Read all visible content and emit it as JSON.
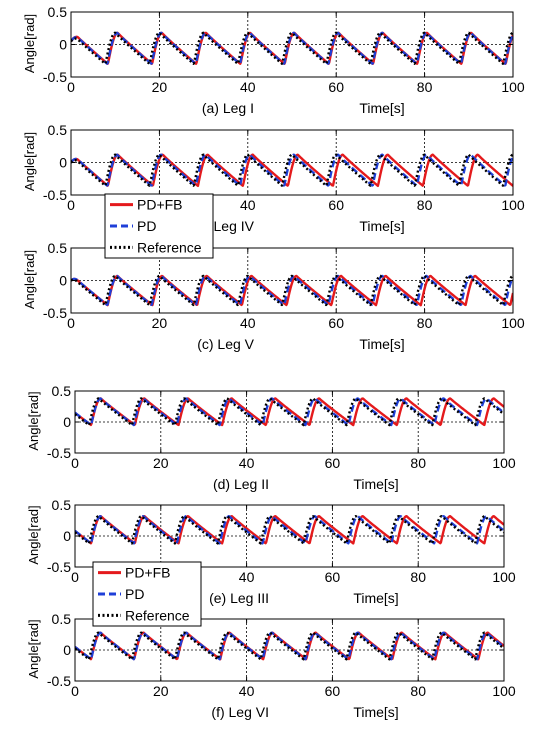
{
  "colors": {
    "pd_fb": "#e41a1c",
    "pd": "#1f3fd8",
    "reference": "#000000",
    "grid": "#000000",
    "axes": "#000000",
    "background": "#ffffff"
  },
  "legend_top": {
    "entries": [
      "PD+FB",
      "PD",
      "Reference"
    ]
  },
  "legend_bottom": {
    "entries": [
      "PD+FB",
      "PD",
      "Reference"
    ]
  },
  "chart_data": [
    {
      "type": "line",
      "caption": "(a)  Leg I",
      "xlabel": "Time[s]",
      "ylabel": "Angle[rad]",
      "xlim": [
        0,
        100
      ],
      "ylim": [
        -0.5,
        0.5
      ],
      "xticks": [
        "0",
        "20",
        "40",
        "60",
        "80",
        "100"
      ],
      "yticks": [
        "0.5",
        "0",
        "-0.5"
      ],
      "grid": "dotted",
      "legend": "none",
      "waveform": {
        "period": 10.0,
        "phase": 0.0,
        "y_low": -0.3,
        "y_high": 0.18,
        "y_start": 0.05,
        "rise_fraction": 0.22
      },
      "series": [
        {
          "name": "PD+FB",
          "delay": 0.55,
          "delay_growth": 0.0
        },
        {
          "name": "PD",
          "delay": 0.45,
          "delay_growth": 0.0
        },
        {
          "name": "Reference",
          "delay": 0.0,
          "delay_growth": 0.0
        }
      ]
    },
    {
      "type": "line",
      "caption": "(b)  Leg IV",
      "xlabel": "Time[s]",
      "ylabel": "Angle[rad]",
      "xlim": [
        0,
        100
      ],
      "ylim": [
        -0.5,
        0.5
      ],
      "xticks": [
        "0",
        "20",
        "40",
        "60",
        "80",
        "100"
      ],
      "yticks": [
        "0.5",
        "0",
        "-0.5"
      ],
      "grid": "dotted",
      "legend": "overlapping lower-left",
      "waveform": {
        "period": 10.0,
        "phase": 0.0,
        "y_low": -0.36,
        "y_high": 0.12,
        "y_start": 0.0,
        "rise_fraction": 0.22
      },
      "series": [
        {
          "name": "PD+FB",
          "delay": 0.4,
          "delay_growth": 0.018
        },
        {
          "name": "PD",
          "delay": 0.45,
          "delay_growth": 0.0
        },
        {
          "name": "Reference",
          "delay": 0.0,
          "delay_growth": 0.0
        }
      ]
    },
    {
      "type": "line",
      "caption": "(c)  Leg V",
      "xlabel": "Time[s]",
      "ylabel": "Angle[rad]",
      "xlim": [
        0,
        100
      ],
      "ylim": [
        -0.5,
        0.5
      ],
      "xticks": [
        "0",
        "20",
        "40",
        "60",
        "80",
        "100"
      ],
      "yticks": [
        "0.5",
        "0",
        "-0.5"
      ],
      "grid": "dotted",
      "legend": "none",
      "waveform": {
        "period": 10.0,
        "phase": 0.0,
        "y_low": -0.38,
        "y_high": 0.07,
        "y_start": 0.0,
        "rise_fraction": 0.22
      },
      "series": [
        {
          "name": "PD+FB",
          "delay": 0.4,
          "delay_growth": 0.012
        },
        {
          "name": "PD",
          "delay": 0.45,
          "delay_growth": 0.0
        },
        {
          "name": "Reference",
          "delay": 0.0,
          "delay_growth": 0.0
        }
      ]
    },
    {
      "type": "line",
      "caption": "(d)  Leg II",
      "xlabel": "Time[s]",
      "ylabel": "Angle[rad]",
      "xlim": [
        0,
        100
      ],
      "ylim": [
        -0.5,
        0.5
      ],
      "xticks": [
        "0",
        "20",
        "40",
        "60",
        "80",
        "100"
      ],
      "yticks": [
        "0.5",
        "0",
        "-0.5"
      ],
      "grid": "dotted",
      "legend": "none",
      "waveform": {
        "period": 10.0,
        "phase": 5.5,
        "y_low": -0.05,
        "y_high": 0.38,
        "y_start": 0.0,
        "rise_fraction": 0.22
      },
      "series": [
        {
          "name": "PD+FB",
          "delay": 0.4,
          "delay_growth": 0.018
        },
        {
          "name": "PD",
          "delay": 0.45,
          "delay_growth": 0.0
        },
        {
          "name": "Reference",
          "delay": 0.0,
          "delay_growth": 0.0
        }
      ]
    },
    {
      "type": "line",
      "caption": "(e)  Leg III",
      "xlabel": "Time[s]",
      "ylabel": "Angle[rad]",
      "xlim": [
        0,
        100
      ],
      "ylim": [
        -0.5,
        0.5
      ],
      "xticks": [
        "0",
        "20",
        "40",
        "60",
        "80",
        "100"
      ],
      "yticks": [
        "0.5",
        "0",
        "-0.5"
      ],
      "grid": "dotted",
      "legend": "overlapping lower-left",
      "waveform": {
        "period": 10.0,
        "phase": 5.5,
        "y_low": -0.12,
        "y_high": 0.32,
        "y_start": -0.05,
        "rise_fraction": 0.22
      },
      "series": [
        {
          "name": "PD+FB",
          "delay": 0.4,
          "delay_growth": 0.018
        },
        {
          "name": "PD",
          "delay": 0.45,
          "delay_growth": 0.0
        },
        {
          "name": "Reference",
          "delay": 0.0,
          "delay_growth": 0.0
        }
      ]
    },
    {
      "type": "line",
      "caption": "(f)  Leg VI",
      "xlabel": "Time[s]",
      "ylabel": "Angle[rad]",
      "xlim": [
        0,
        100
      ],
      "ylim": [
        -0.5,
        0.5
      ],
      "xticks": [
        "0",
        "20",
        "40",
        "60",
        "80",
        "100"
      ],
      "yticks": [
        "0.5",
        "0",
        "-0.5"
      ],
      "grid": "dotted",
      "legend": "none",
      "waveform": {
        "period": 10.0,
        "phase": 5.5,
        "y_low": -0.15,
        "y_high": 0.28,
        "y_start": -0.05,
        "rise_fraction": 0.22
      },
      "series": [
        {
          "name": "PD+FB",
          "delay": 0.45,
          "delay_growth": 0.003
        },
        {
          "name": "PD",
          "delay": 0.45,
          "delay_growth": 0.0
        },
        {
          "name": "Reference",
          "delay": 0.0,
          "delay_growth": 0.0
        }
      ]
    }
  ]
}
